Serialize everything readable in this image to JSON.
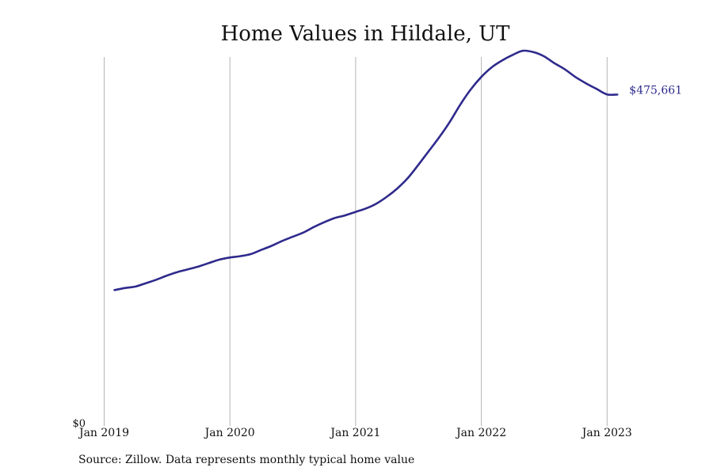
{
  "chart_data": {
    "type": "line",
    "title": "Home Values in Hildale, UT",
    "xlabel": "",
    "ylabel": "",
    "x_tick_labels": [
      "Jan 2019",
      "Jan 2020",
      "Jan 2021",
      "Jan 2022",
      "Jan 2023"
    ],
    "y_tick_labels": [
      "$0"
    ],
    "ylim": [
      0,
      530000
    ],
    "grid": "vertical",
    "end_label": "$475,661",
    "line_color": "#2e2a8c",
    "series": [
      {
        "x": [
          "2019-01",
          "2019-02",
          "2019-03",
          "2019-04",
          "2019-05",
          "2019-06",
          "2019-07",
          "2019-08",
          "2019-09",
          "2019-10",
          "2019-11",
          "2019-12",
          "2020-01",
          "2020-02",
          "2020-03",
          "2020-04",
          "2020-05",
          "2020-06",
          "2020-07",
          "2020-08",
          "2020-09",
          "2020-10",
          "2020-11",
          "2020-12",
          "2021-01",
          "2021-02",
          "2021-03",
          "2021-04",
          "2021-05",
          "2021-06",
          "2021-07",
          "2021-08",
          "2021-09",
          "2021-10",
          "2021-11",
          "2021-12",
          "2022-01",
          "2022-02",
          "2022-03",
          "2022-04",
          "2022-05",
          "2022-06",
          "2022-07",
          "2022-08",
          "2022-09",
          "2022-10",
          "2022-11",
          "2022-12",
          "2023-01"
        ],
        "values": [
          193000,
          196000,
          198000,
          203000,
          208000,
          214000,
          219000,
          223000,
          227000,
          232000,
          237000,
          240000,
          242000,
          245000,
          251000,
          257000,
          264000,
          270000,
          276000,
          284000,
          291000,
          297000,
          301000,
          306000,
          311000,
          318000,
          328000,
          340000,
          355000,
          374000,
          394000,
          414000,
          436000,
          461000,
          483000,
          501000,
          515000,
          525000,
          533000,
          539000,
          537000,
          531000,
          521000,
          512000,
          501000,
          492000,
          484000,
          476000,
          475661
        ]
      }
    ]
  },
  "source": "Source: Zillow. Data represents monthly typical home value"
}
